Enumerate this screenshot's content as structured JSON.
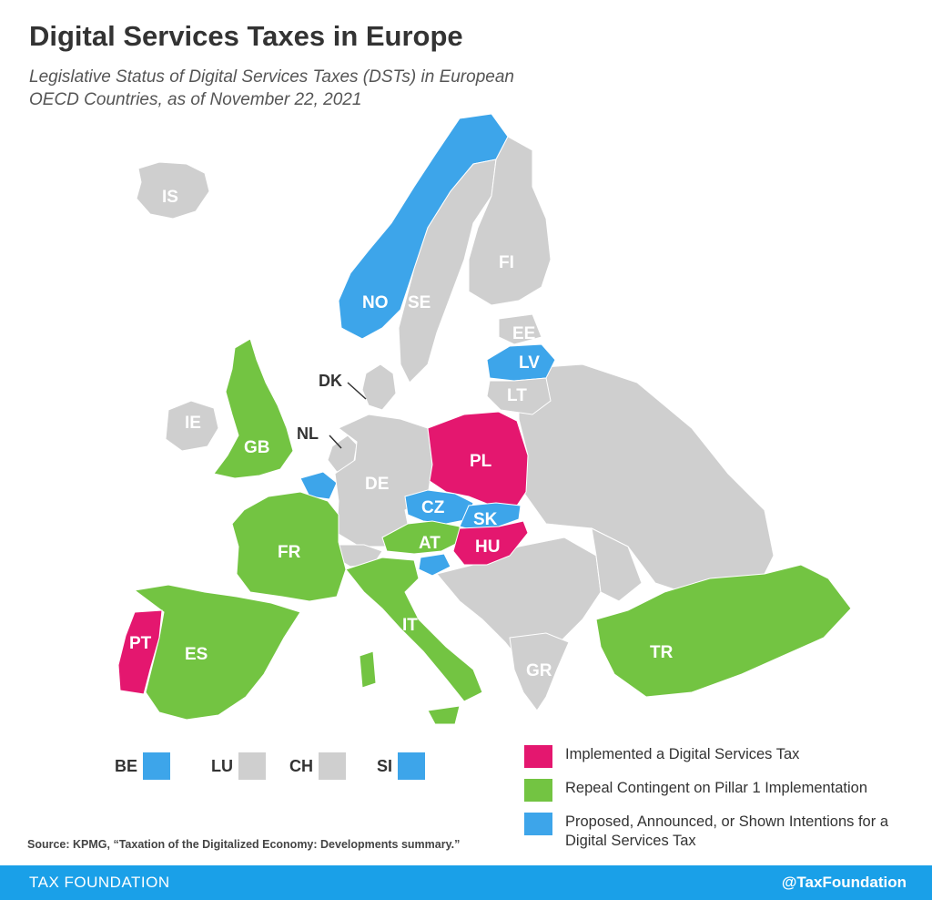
{
  "title": "Digital Services Taxes in Europe",
  "subtitle": "Legislative Status of Digital Services Taxes (DSTs) in European OECD Countries, as of November 22, 2021",
  "colors": {
    "implemented": "#e4176f",
    "repeal_contingent": "#73c442",
    "proposed": "#3da5ea",
    "other": "#cfcfcf",
    "footer": "#1aa0e8"
  },
  "countries": [
    {
      "code": "IS",
      "status": "other"
    },
    {
      "code": "NO",
      "status": "proposed"
    },
    {
      "code": "SE",
      "status": "other"
    },
    {
      "code": "FI",
      "status": "other"
    },
    {
      "code": "EE",
      "status": "other"
    },
    {
      "code": "LV",
      "status": "proposed"
    },
    {
      "code": "LT",
      "status": "other"
    },
    {
      "code": "DK",
      "status": "other"
    },
    {
      "code": "IE",
      "status": "other"
    },
    {
      "code": "GB",
      "status": "repeal_contingent"
    },
    {
      "code": "NL",
      "status": "other"
    },
    {
      "code": "DE",
      "status": "other"
    },
    {
      "code": "PL",
      "status": "implemented"
    },
    {
      "code": "CZ",
      "status": "proposed"
    },
    {
      "code": "SK",
      "status": "proposed"
    },
    {
      "code": "AT",
      "status": "repeal_contingent"
    },
    {
      "code": "HU",
      "status": "implemented"
    },
    {
      "code": "FR",
      "status": "repeal_contingent"
    },
    {
      "code": "IT",
      "status": "repeal_contingent"
    },
    {
      "code": "ES",
      "status": "repeal_contingent"
    },
    {
      "code": "PT",
      "status": "implemented"
    },
    {
      "code": "TR",
      "status": "repeal_contingent"
    },
    {
      "code": "GR",
      "status": "other"
    }
  ],
  "small_states": [
    {
      "code": "BE",
      "status": "proposed"
    },
    {
      "code": "LU",
      "status": "other"
    },
    {
      "code": "CH",
      "status": "other"
    },
    {
      "code": "SI",
      "status": "proposed"
    }
  ],
  "legend": [
    {
      "status": "implemented",
      "label": "Implemented a Digital Services Tax"
    },
    {
      "status": "repeal_contingent",
      "label": "Repeal Contingent on Pillar 1 Implementation"
    },
    {
      "status": "proposed",
      "label": "Proposed, Announced, or Shown Intentions for a Digital Services Tax"
    }
  ],
  "source": "Source: KPMG, “Taxation of the Digitalized Economy: Developments summary.”",
  "footer": {
    "brand": "TAX FOUNDATION",
    "handle": "@TaxFoundation"
  }
}
